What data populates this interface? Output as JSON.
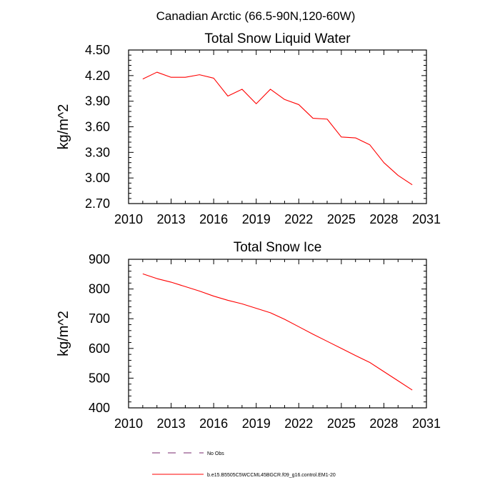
{
  "figure_title": "Canadian Arctic (66.5-90N,120-60W)",
  "legend": {
    "items": [
      {
        "label": "No Obs",
        "style": "dashed",
        "color": "#7a2a6e"
      },
      {
        "label": "b.e15.B5505C5WCCML45BGCR.f09_g16.control.EM1-20",
        "style": "solid",
        "color": "#ff0000"
      }
    ]
  },
  "chart_data": [
    {
      "type": "line",
      "title": "Total Snow Liquid Water",
      "xlabel": "",
      "ylabel": "kg/m^2",
      "xlim": [
        2010,
        2031
      ],
      "ylim": [
        2.7,
        4.5
      ],
      "xticks": [
        2010,
        2013,
        2016,
        2019,
        2022,
        2025,
        2028,
        2031
      ],
      "xtick_labels": [
        "2010",
        "2013",
        "2016",
        "2019",
        "2022",
        "2025",
        "2028",
        "2031"
      ],
      "yticks": [
        2.7,
        3.0,
        3.3,
        3.6,
        3.9,
        4.2,
        4.5
      ],
      "ytick_labels": [
        "2.70",
        "3.00",
        "3.30",
        "3.60",
        "3.90",
        "4.20",
        "4.50"
      ],
      "grid": false,
      "series": [
        {
          "name": "b.e15.B5505C5WCCML45BGCR.f09_g16.control.EM1-20",
          "color": "#ff0000",
          "x": [
            2011,
            2012,
            2013,
            2014,
            2015,
            2016,
            2017,
            2018,
            2019,
            2020,
            2021,
            2022,
            2023,
            2024,
            2025,
            2026,
            2027,
            2028,
            2029,
            2030
          ],
          "y": [
            4.16,
            4.24,
            4.18,
            4.18,
            4.21,
            4.17,
            3.96,
            4.04,
            3.87,
            4.04,
            3.92,
            3.86,
            3.7,
            3.69,
            3.48,
            3.47,
            3.39,
            3.18,
            3.03,
            2.92
          ]
        }
      ]
    },
    {
      "type": "line",
      "title": "Total Snow Ice",
      "xlabel": "",
      "ylabel": "kg/m^2",
      "xlim": [
        2010,
        2031
      ],
      "ylim": [
        400,
        900
      ],
      "xticks": [
        2010,
        2013,
        2016,
        2019,
        2022,
        2025,
        2028,
        2031
      ],
      "xtick_labels": [
        "2010",
        "2013",
        "2016",
        "2019",
        "2022",
        "2025",
        "2028",
        "2031"
      ],
      "yticks": [
        400,
        500,
        600,
        700,
        800,
        900
      ],
      "ytick_labels": [
        "400",
        "500",
        "600",
        "700",
        "800",
        "900"
      ],
      "grid": false,
      "series": [
        {
          "name": "b.e15.B5505C5WCCML45BGCR.f09_g16.control.EM1-20",
          "color": "#ff0000",
          "x": [
            2011,
            2012,
            2013,
            2014,
            2015,
            2016,
            2017,
            2018,
            2019,
            2020,
            2021,
            2022,
            2023,
            2024,
            2025,
            2026,
            2027,
            2028,
            2029,
            2030
          ],
          "y": [
            851,
            835,
            823,
            808,
            793,
            776,
            762,
            750,
            735,
            720,
            698,
            673,
            648,
            624,
            600,
            576,
            553,
            522,
            491,
            460
          ]
        }
      ]
    }
  ]
}
